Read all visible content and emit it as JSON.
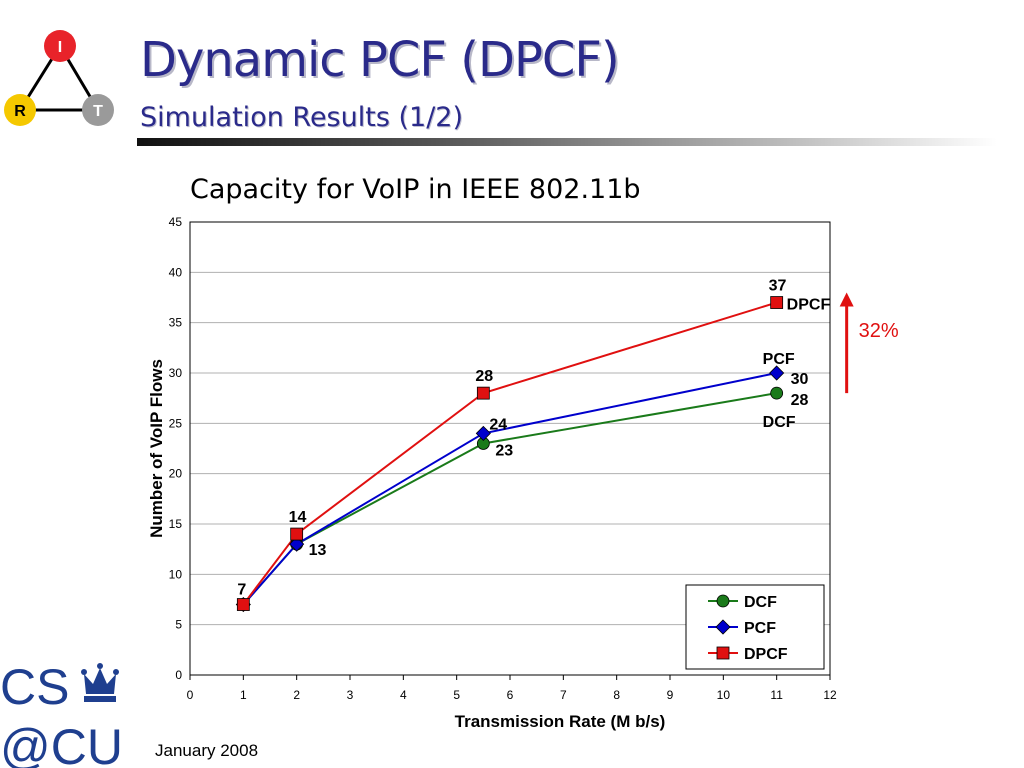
{
  "slide": {
    "title": "Dynamic PCF (DPCF)",
    "subtitle": "Simulation Results (1/2)",
    "footer_date": "January 2008",
    "accent_color": "#2a2a8a"
  },
  "logo_irt": {
    "nodes": [
      {
        "letter": "I",
        "color": "#e8232a"
      },
      {
        "letter": "R",
        "color": "#f5c800"
      },
      {
        "letter": "T",
        "color": "#9a9a9a"
      }
    ]
  },
  "logo_cscu": {
    "text_top": "CS",
    "text_bottom": "@CU",
    "icon": "crown-icon",
    "color": "#1f3f8f"
  },
  "chart_data": {
    "type": "line",
    "title": "Capacity for VoIP in IEEE 802.11b",
    "xlabel": "Transmission Rate (M b/s)",
    "ylabel": "Number of VoIP Flows",
    "xlim": [
      0,
      12
    ],
    "ylim": [
      0,
      45
    ],
    "xticks": [
      0,
      1,
      2,
      3,
      4,
      5,
      6,
      7,
      8,
      9,
      10,
      11,
      12
    ],
    "yticks": [
      0,
      5,
      10,
      15,
      20,
      25,
      30,
      35,
      40,
      45
    ],
    "grid": true,
    "legend_position": "bottom-right",
    "series": [
      {
        "name": "DCF",
        "color": "#1a7a1a",
        "marker": "circle",
        "x": [
          1,
          2,
          5.5,
          11
        ],
        "y": [
          7,
          13,
          23,
          28
        ],
        "labels": [
          "7",
          "13",
          "23",
          "28"
        ]
      },
      {
        "name": "PCF",
        "color": "#0000cc",
        "marker": "diamond",
        "x": [
          1,
          2,
          5.5,
          11
        ],
        "y": [
          7,
          13,
          24,
          30
        ],
        "labels": [
          "7",
          "13",
          "24",
          "30"
        ]
      },
      {
        "name": "DPCF",
        "color": "#e01010",
        "marker": "square",
        "x": [
          1,
          2,
          5.5,
          11
        ],
        "y": [
          7,
          14,
          28,
          37
        ],
        "labels": [
          "7",
          "14",
          "28",
          "37"
        ]
      }
    ],
    "annotations": {
      "series_names_at_end": [
        "DPCF",
        "PCF",
        "DCF"
      ],
      "improvement_arrow_label": "32%",
      "improvement_arrow_color": "#e01010"
    }
  }
}
